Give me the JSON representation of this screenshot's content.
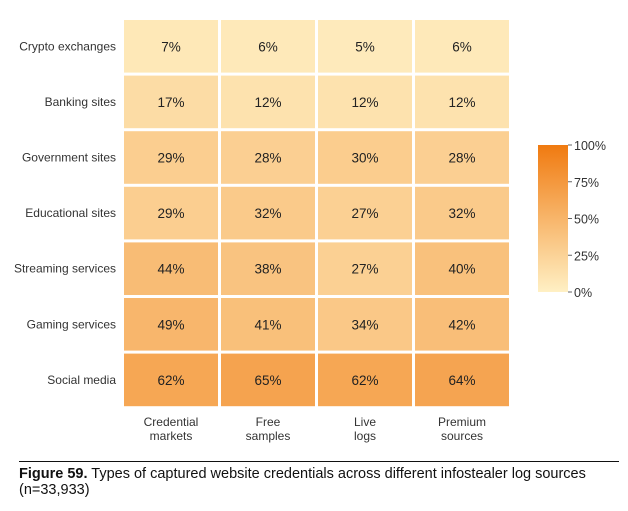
{
  "chart_data": {
    "type": "heatmap",
    "rows": [
      "Crypto exchanges",
      "Banking sites",
      "Government sites",
      "Educational sites",
      "Streaming services",
      "Gaming services",
      "Social media"
    ],
    "columns": [
      [
        "Credential",
        "markets"
      ],
      [
        "Free",
        "samples"
      ],
      [
        "Live",
        "logs"
      ],
      [
        "Premium",
        "sources"
      ]
    ],
    "values": [
      [
        7,
        6,
        5,
        6
      ],
      [
        17,
        12,
        12,
        12
      ],
      [
        29,
        28,
        30,
        28
      ],
      [
        29,
        32,
        27,
        32
      ],
      [
        44,
        38,
        27,
        40
      ],
      [
        49,
        41,
        34,
        42
      ],
      [
        62,
        65,
        62,
        64
      ]
    ],
    "value_suffix": "%",
    "colorbar": {
      "range": [
        0,
        100
      ],
      "ticks": [
        "0%",
        "25%",
        "50%",
        "75%",
        "100%"
      ],
      "colors": [
        "#fff0c4",
        "#f07a10"
      ]
    }
  },
  "caption": {
    "label": "Figure 59.",
    "text": " Types of captured website credentials across different infostealer log sources (n=33,933)"
  }
}
